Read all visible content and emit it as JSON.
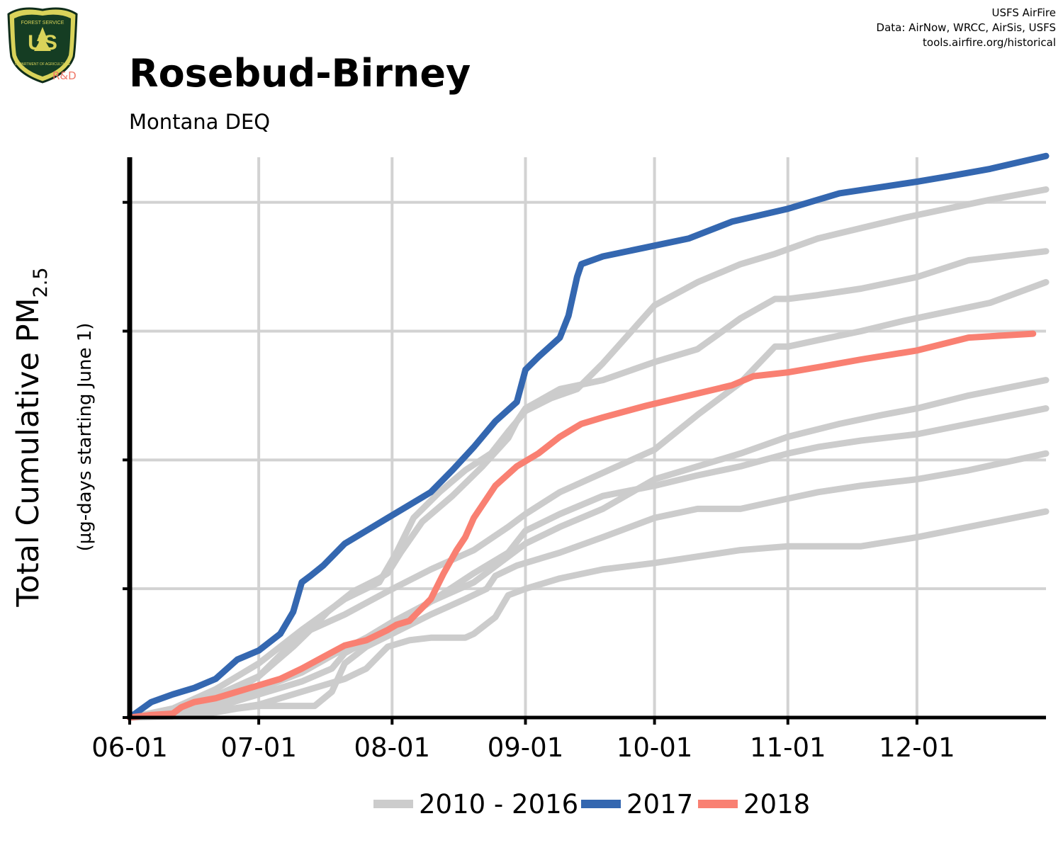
{
  "header": {
    "credit_lines": [
      "USFS AirFire",
      "Data: AirNow, WRCC, AirSis, USFS",
      "tools.airfire.org/historical"
    ],
    "logo": {
      "text_top": "FOREST SERVICE",
      "text_main": "US",
      "text_bottom": "DEPARTMENT OF AGRICULTURE",
      "badge": "R&D",
      "icon": "forest-service-shield-icon"
    }
  },
  "chart_data": {
    "type": "line",
    "title": "Rosebud-Birney",
    "subtitle": "Montana DEQ",
    "ylabel_main": "Total Cumulative PM",
    "ylabel_sub": "2.5",
    "ylabel_note": "(µg-days starting June 1)",
    "x_tick_labels": [
      "06-01",
      "07-01",
      "08-01",
      "09-01",
      "10-01",
      "11-01",
      "12-01"
    ],
    "x_tick_days": [
      0,
      30,
      61,
      92,
      122,
      153,
      183
    ],
    "xlim": [
      0,
      213
    ],
    "ylim": [
      0,
      4.35
    ],
    "y_gridlines": [
      1,
      2,
      3,
      4
    ],
    "y_tick_labels_shown": false,
    "grid": true,
    "legend": {
      "position": "bottom",
      "entries": [
        {
          "label": "2010 - 2016",
          "color": "#cccccc"
        },
        {
          "label": "2017",
          "color": "#3467b0"
        },
        {
          "label": "2018",
          "color": "#f98072"
        }
      ]
    },
    "colors": {
      "history": "#cccccc",
      "y2017": "#3467b0",
      "y2018": "#f98072",
      "grid": "#d2d2d2",
      "axis": "#000000"
    },
    "x_unit": "days since June 1",
    "series": [
      {
        "group": "2010 - 2016",
        "x": [
          0,
          10,
          20,
          30,
          38,
          42,
          46,
          52,
          58,
          60,
          63,
          68,
          75,
          82,
          88,
          90,
          92,
          100,
          110,
          122,
          132,
          142,
          150,
          153,
          160,
          170,
          183,
          195,
          213
        ],
        "y": [
          0,
          0.05,
          0.12,
          0.32,
          0.55,
          0.68,
          0.82,
          0.98,
          1.08,
          1.12,
          1.28,
          1.52,
          1.72,
          1.95,
          2.17,
          2.3,
          2.4,
          2.55,
          2.62,
          2.76,
          2.86,
          3.1,
          3.25,
          3.25,
          3.28,
          3.33,
          3.42,
          3.55,
          3.62
        ]
      },
      {
        "group": "2010 - 2016",
        "x": [
          0,
          10,
          20,
          30,
          40,
          50,
          58,
          62,
          66,
          72,
          78,
          84,
          88,
          92,
          98,
          104,
          110,
          118,
          122,
          132,
          142,
          150,
          160,
          170,
          180,
          190,
          200,
          213
        ],
        "y": [
          0,
          0.07,
          0.22,
          0.42,
          0.68,
          0.92,
          1.05,
          1.28,
          1.55,
          1.75,
          1.92,
          2.05,
          2.22,
          2.38,
          2.48,
          2.55,
          2.75,
          3.05,
          3.2,
          3.38,
          3.52,
          3.6,
          3.72,
          3.8,
          3.88,
          3.95,
          4.02,
          4.1
        ]
      },
      {
        "group": "2010 - 2016",
        "x": [
          0,
          10,
          20,
          30,
          40,
          50,
          60,
          70,
          80,
          88,
          92,
          100,
          110,
          122,
          132,
          142,
          150,
          153,
          160,
          170,
          180,
          190,
          200,
          213
        ],
        "y": [
          0,
          0.06,
          0.17,
          0.32,
          0.65,
          0.8,
          0.98,
          1.15,
          1.3,
          1.48,
          1.58,
          1.75,
          1.9,
          2.08,
          2.35,
          2.6,
          2.88,
          2.88,
          2.93,
          3.0,
          3.08,
          3.15,
          3.22,
          3.38
        ]
      },
      {
        "group": "2010 - 2016",
        "x": [
          0,
          10,
          20,
          30,
          40,
          48,
          55,
          61,
          70,
          80,
          86,
          92,
          100,
          110,
          122,
          132,
          142,
          153,
          165,
          175,
          183,
          195,
          213
        ],
        "y": [
          0,
          0.04,
          0.1,
          0.22,
          0.35,
          0.5,
          0.62,
          0.74,
          0.9,
          1.05,
          1.2,
          1.35,
          1.48,
          1.62,
          1.85,
          1.95,
          2.05,
          2.18,
          2.28,
          2.35,
          2.4,
          2.5,
          2.62
        ]
      },
      {
        "group": "2010 - 2016",
        "x": [
          0,
          10,
          20,
          30,
          40,
          47,
          50,
          61,
          70,
          80,
          88,
          92,
          100,
          110,
          122,
          132,
          142,
          153,
          160,
          170,
          183,
          195,
          213
        ],
        "y": [
          0,
          0.03,
          0.08,
          0.18,
          0.28,
          0.38,
          0.5,
          0.7,
          0.9,
          1.12,
          1.28,
          1.45,
          1.58,
          1.72,
          1.8,
          1.88,
          1.95,
          2.05,
          2.1,
          2.15,
          2.2,
          2.28,
          2.4
        ]
      },
      {
        "group": "2010 - 2016",
        "x": [
          0,
          10,
          20,
          25,
          30,
          40,
          43,
          47,
          50,
          55,
          61,
          70,
          78,
          83,
          85,
          90,
          100,
          110,
          122,
          132,
          142,
          153,
          160,
          170,
          183,
          195,
          213
        ],
        "y": [
          0,
          0.01,
          0.04,
          0.07,
          0.09,
          0.09,
          0.09,
          0.2,
          0.42,
          0.55,
          0.65,
          0.8,
          0.92,
          1.0,
          1.1,
          1.18,
          1.28,
          1.4,
          1.55,
          1.62,
          1.62,
          1.7,
          1.75,
          1.8,
          1.85,
          1.92,
          2.05
        ]
      },
      {
        "group": "2010 - 2016",
        "x": [
          0,
          10,
          20,
          30,
          40,
          50,
          55,
          60,
          65,
          70,
          78,
          80,
          85,
          88,
          92,
          100,
          110,
          122,
          132,
          142,
          153,
          160,
          170,
          183,
          195,
          213
        ],
        "y": [
          0,
          0.02,
          0.05,
          0.1,
          0.2,
          0.3,
          0.38,
          0.55,
          0.6,
          0.62,
          0.62,
          0.65,
          0.78,
          0.95,
          1.0,
          1.08,
          1.15,
          1.2,
          1.25,
          1.3,
          1.33,
          1.33,
          1.33,
          1.4,
          1.48,
          1.6
        ]
      },
      {
        "group": "2017",
        "x": [
          0,
          5,
          10,
          15,
          20,
          25,
          30,
          35,
          38,
          40,
          42,
          45,
          50,
          55,
          60,
          65,
          70,
          75,
          80,
          85,
          90,
          92,
          95,
          100,
          102,
          104,
          105,
          110,
          120,
          130,
          140,
          153,
          165,
          175,
          183,
          190,
          200,
          213
        ],
        "y": [
          0,
          0.12,
          0.18,
          0.23,
          0.3,
          0.45,
          0.52,
          0.65,
          0.82,
          1.05,
          1.1,
          1.18,
          1.35,
          1.45,
          1.55,
          1.65,
          1.75,
          1.92,
          2.1,
          2.3,
          2.45,
          2.7,
          2.8,
          2.95,
          3.12,
          3.42,
          3.52,
          3.58,
          3.65,
          3.72,
          3.85,
          3.95,
          4.07,
          4.12,
          4.16,
          4.2,
          4.26,
          4.36
        ]
      },
      {
        "group": "2018",
        "x": [
          0,
          5,
          10,
          12,
          15,
          20,
          25,
          30,
          35,
          40,
          45,
          50,
          55,
          60,
          62,
          65,
          70,
          73,
          76,
          78,
          80,
          85,
          90,
          95,
          100,
          105,
          110,
          120,
          130,
          140,
          145,
          153,
          160,
          170,
          183,
          195,
          210
        ],
        "y": [
          0,
          0.02,
          0.03,
          0.08,
          0.12,
          0.15,
          0.2,
          0.25,
          0.3,
          0.38,
          0.47,
          0.56,
          0.6,
          0.68,
          0.72,
          0.75,
          0.92,
          1.12,
          1.3,
          1.4,
          1.55,
          1.8,
          1.95,
          2.05,
          2.18,
          2.28,
          2.33,
          2.42,
          2.5,
          2.58,
          2.65,
          2.68,
          2.72,
          2.78,
          2.85,
          2.95,
          2.98
        ]
      }
    ]
  }
}
